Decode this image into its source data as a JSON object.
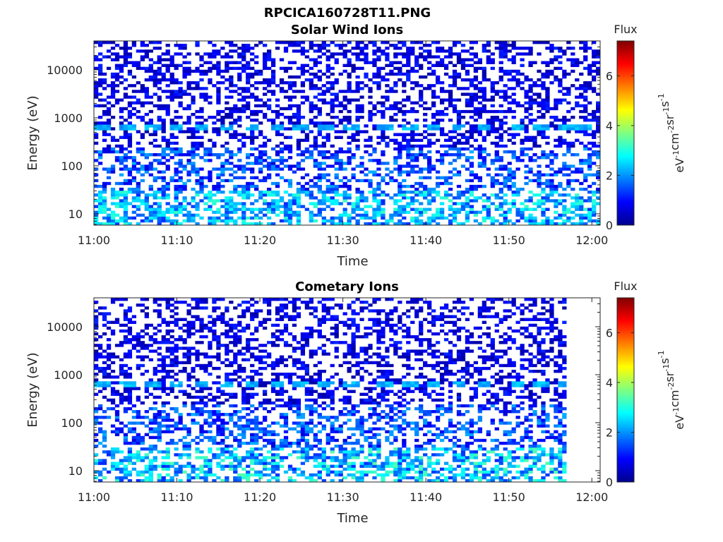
{
  "figure": {
    "title": "RPCICA160728T11.PNG"
  },
  "chart_data": [
    {
      "type": "heatmap",
      "title": "Solar Wind Ions",
      "xlabel": "Time",
      "ylabel": "Energy (eV)",
      "x_ticks": [
        "11:00",
        "11:10",
        "11:20",
        "11:30",
        "11:40",
        "11:50",
        "12:00"
      ],
      "x_range": [
        "11:00",
        "12:01"
      ],
      "y_scale": "log",
      "y_ticks": [
        10,
        100,
        1000,
        10000
      ],
      "y_range": [
        5.8,
        40000
      ],
      "colorbar": {
        "title": "Flux",
        "label": "eV-1cm-2sr-1s-1",
        "range": [
          0,
          7.4
        ],
        "ticks": [
          0,
          2,
          4,
          6
        ],
        "colormap": "jet"
      },
      "colors": {
        "low": "#00008f",
        "mid": "#00c8ff",
        "high": "#800000"
      },
      "features": {
        "band_energy_eV": 620,
        "band_flux_approx": 2.2,
        "band_times": [
          "11:01",
          "11:04",
          "11:07",
          "11:10",
          "11:13",
          "11:16",
          "11:19",
          "11:22",
          "11:25",
          "11:28",
          "11:31",
          "11:35",
          "11:38",
          "11:41",
          "11:44",
          "11:47",
          "11:51",
          "11:54",
          "11:57",
          "11:59"
        ],
        "low_energy_flux_max": 3.2,
        "background_flux": "0.2-1.2",
        "data_end_time": "12:01"
      }
    },
    {
      "type": "heatmap",
      "title": "Cometary Ions",
      "xlabel": "Time",
      "ylabel": "Energy (eV)",
      "x_ticks": [
        "11:00",
        "11:10",
        "11:20",
        "11:30",
        "11:40",
        "11:50",
        "12:00"
      ],
      "x_range": [
        "11:00",
        "12:01"
      ],
      "y_scale": "log",
      "y_ticks": [
        10,
        100,
        1000,
        10000
      ],
      "y_range": [
        5.8,
        40000
      ],
      "colorbar": {
        "title": "Flux",
        "label": "eV-1cm-2sr-1s-1",
        "range": [
          0,
          7.4
        ],
        "ticks": [
          0,
          2,
          4,
          6
        ],
        "colormap": "jet"
      },
      "colors": {
        "low": "#00008f",
        "mid": "#00c8ff",
        "high": "#800000"
      },
      "features": {
        "band_energy_eV": 620,
        "band_flux_approx": 2.2,
        "band_times": [
          "11:01",
          "11:04",
          "11:07",
          "11:10",
          "11:13",
          "11:16",
          "11:19",
          "11:22",
          "11:25",
          "11:28",
          "11:31",
          "11:35",
          "11:38",
          "11:41",
          "11:44",
          "11:47",
          "11:51",
          "11:54",
          "11:57",
          "11:59"
        ],
        "low_energy_flux_max": 3.4,
        "background_flux": "0.2-1.2",
        "data_end_time": "11:57"
      }
    }
  ]
}
